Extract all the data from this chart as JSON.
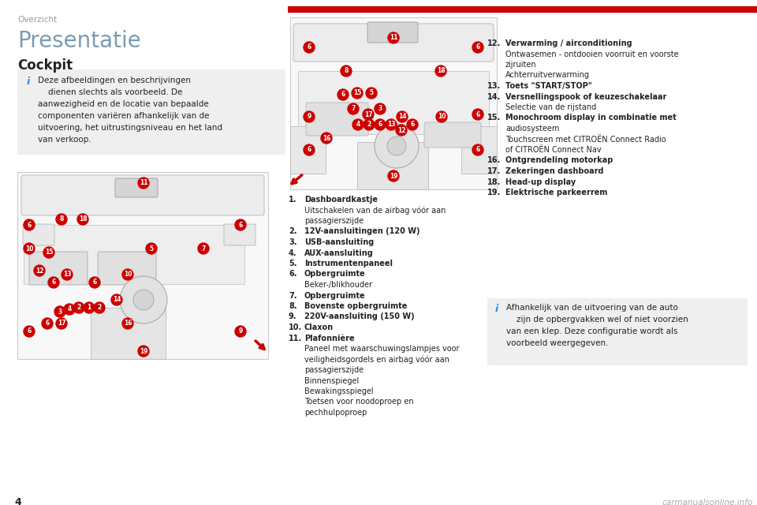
{
  "bg_color": "#ffffff",
  "header_text": "Overzicht",
  "header_color": "#999999",
  "red_bar_color": "#cc0000",
  "title_text": "Presentatie",
  "title_color": "#7a9cb0",
  "title_fontsize": 20,
  "subtitle_text": "Cockpit",
  "subtitle_fontsize": 12,
  "info_box_color": "#efefef",
  "info_icon_color": "#1e90ff",
  "info_text_lines": [
    "Deze afbeeldingen en beschrijvingen",
    "    dienen slechts als voorbeeld. De",
    "aanwezigheid en de locatie van bepaalde",
    "componenten variëren afhankelijk van de",
    "uitvoering, het uitrustingsniveau en het land",
    "van verkoop."
  ],
  "list_items_left": [
    {
      "num": "1.",
      "bold": true,
      "text": "Dashboardkastje"
    },
    {
      "num": "",
      "bold": false,
      "text": "Uitschakelen van de airbag vóór aan"
    },
    {
      "num": "",
      "bold": false,
      "text": "passagierszijde"
    },
    {
      "num": "2.",
      "bold": true,
      "text": "12V-aansluitingen (120 W)"
    },
    {
      "num": "3.",
      "bold": true,
      "text": "USB-aansluiting"
    },
    {
      "num": "4.",
      "bold": true,
      "text": "AUX-aansluiting"
    },
    {
      "num": "5.",
      "bold": true,
      "text": "Instrumentenpaneel"
    },
    {
      "num": "6.",
      "bold": true,
      "text": "Opbergruimte"
    },
    {
      "num": "",
      "bold": false,
      "text": "Beker-/blikhouder"
    },
    {
      "num": "7.",
      "bold": true,
      "text": "Opbergruimte"
    },
    {
      "num": "8.",
      "bold": true,
      "text": "Bovenste opbergruimte"
    },
    {
      "num": "9.",
      "bold": true,
      "text": "220V-aansluiting (150 W)"
    },
    {
      "num": "10.",
      "bold": true,
      "text": "Claxon"
    },
    {
      "num": "11.",
      "bold": true,
      "text": "Plafonnière"
    },
    {
      "num": "",
      "bold": false,
      "text": "Paneel met waarschuwingslampjes voor"
    },
    {
      "num": "",
      "bold": false,
      "text": "veiligheidsgordels en airbag vóór aan"
    },
    {
      "num": "",
      "bold": false,
      "text": "passagierszijde"
    },
    {
      "num": "",
      "bold": false,
      "text": "Binnenspiegel"
    },
    {
      "num": "",
      "bold": false,
      "text": "Bewakingsspiegel"
    },
    {
      "num": "",
      "bold": false,
      "text": "Toetsen voor noodoproep en"
    },
    {
      "num": "",
      "bold": false,
      "text": "pechhulpoproep"
    }
  ],
  "list_items_right": [
    {
      "num": "12.",
      "bold": true,
      "text": "Verwarming / airconditioning"
    },
    {
      "num": "",
      "bold": false,
      "text": "Ontwasemen - ontdooien voorruit en voorste"
    },
    {
      "num": "",
      "bold": false,
      "text": "zijruiten"
    },
    {
      "num": "",
      "bold": false,
      "text": "Achterruitverwarming"
    },
    {
      "num": "13.",
      "bold": true,
      "text": "Toets \"START/STOP\""
    },
    {
      "num": "14.",
      "bold": true,
      "text": "Versnellingspook of keuzeschakelaar"
    },
    {
      "num": "",
      "bold": false,
      "text": "Selectie van de rijstand"
    },
    {
      "num": "15.",
      "bold": true,
      "text": "Monochroom display in combinatie met"
    },
    {
      "num": "",
      "bold": false,
      "text": "audiosysteem"
    },
    {
      "num": "",
      "bold": false,
      "text": "Touchscreen met CITROËN Connect Radio"
    },
    {
      "num": "",
      "bold": false,
      "text": "of CITROËN Connect Nav"
    },
    {
      "num": "16.",
      "bold": true,
      "text": "Ontgrendeling motorkap"
    },
    {
      "num": "17.",
      "bold": true,
      "text": "Zekeringen dashboard"
    },
    {
      "num": "18.",
      "bold": true,
      "text": "Head-up display"
    },
    {
      "num": "19.",
      "bold": true,
      "text": "Elektrische parkeerrem"
    }
  ],
  "info_box2_lines": [
    "Afhankelijk van de uitvoering van de auto",
    "    zijn de opbergvakken wel of niet voorzien",
    "van een klep. Deze configuratie wordt als",
    "voorbeeld weergegeven."
  ],
  "page_number": "4",
  "watermark_text": "carmanualsonline.info",
  "text_color": "#222222",
  "list_text_size": 7.0
}
